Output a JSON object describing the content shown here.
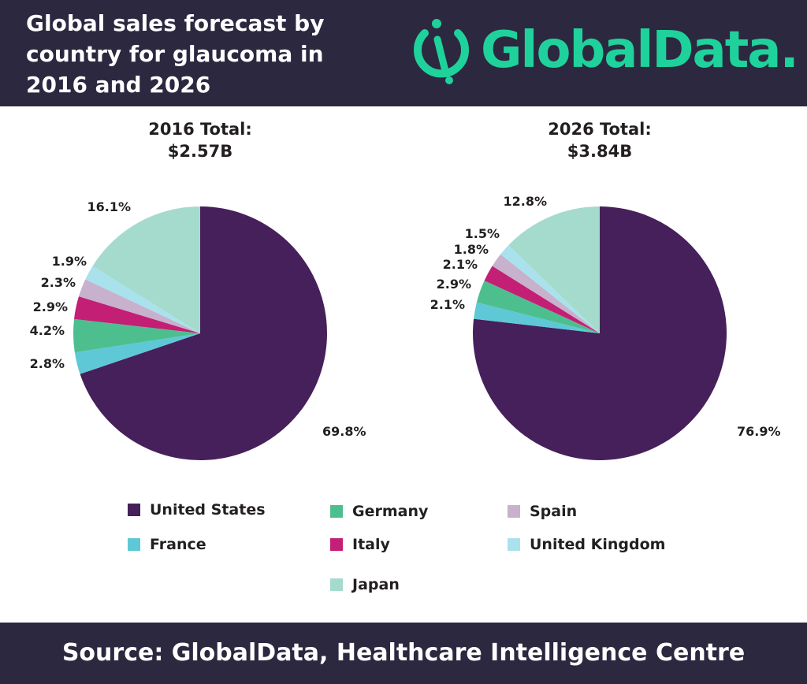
{
  "header": {
    "title_lines": [
      "Global sales forecast by",
      "country for glaucoma in",
      "2016 and 2026"
    ],
    "logo_text": "GlobalData."
  },
  "colors": {
    "header_bg": "#2c2840",
    "brand": "#1fd29b"
  },
  "chart_data": [
    {
      "type": "pie",
      "title": "2016 Total: $2.57B",
      "title_lines": [
        "2016 Total:",
        "$2.57B"
      ],
      "slices": [
        {
          "name": "United States",
          "value": 69.8,
          "label": "69.8%",
          "color": "#46205a"
        },
        {
          "name": "France",
          "value": 2.8,
          "label": "2.8%",
          "color": "#5ec8d6"
        },
        {
          "name": "Germany",
          "value": 4.2,
          "label": "4.2%",
          "color": "#4dbf8e"
        },
        {
          "name": "Italy",
          "value": 2.9,
          "label": "2.9%",
          "color": "#c21f75"
        },
        {
          "name": "Spain",
          "value": 2.3,
          "label": "2.3%",
          "color": "#c7b1cc"
        },
        {
          "name": "United Kingdom",
          "value": 1.9,
          "label": "1.9%",
          "color": "#a9e2ec"
        },
        {
          "name": "Japan",
          "value": 16.1,
          "label": "16.1%",
          "color": "#a4dbcd"
        }
      ]
    },
    {
      "type": "pie",
      "title": "2026 Total: $3.84B",
      "title_lines": [
        "2026 Total:",
        "$3.84B"
      ],
      "slices": [
        {
          "name": "United States",
          "value": 76.9,
          "label": "76.9%",
          "color": "#46205a"
        },
        {
          "name": "France",
          "value": 2.1,
          "label": "2.1%",
          "color": "#5ec8d6"
        },
        {
          "name": "Germany",
          "value": 2.9,
          "label": "2.9%",
          "color": "#4dbf8e"
        },
        {
          "name": "Italy",
          "value": 2.1,
          "label": "2.1%",
          "color": "#c21f75"
        },
        {
          "name": "Spain",
          "value": 1.8,
          "label": "1.8%",
          "color": "#c7b1cc"
        },
        {
          "name": "United Kingdom",
          "value": 1.5,
          "label": "1.5%",
          "color": "#a9e2ec"
        },
        {
          "name": "Japan",
          "value": 12.8,
          "label": "12.8%",
          "color": "#a4dbcd"
        }
      ]
    }
  ],
  "legend": {
    "placement": "bottom",
    "items": [
      {
        "name": "United States",
        "color": "#46205a"
      },
      {
        "name": "Germany",
        "color": "#4dbf8e"
      },
      {
        "name": "Spain",
        "color": "#c7b1cc"
      },
      {
        "name": "France",
        "color": "#5ec8d6"
      },
      {
        "name": "Italy",
        "color": "#c21f75"
      },
      {
        "name": "United Kingdom",
        "color": "#a9e2ec"
      },
      {
        "name": "Japan",
        "color": "#a4dbcd"
      }
    ]
  },
  "footer": {
    "source": "Source:  GlobalData, Healthcare Intelligence Centre"
  }
}
